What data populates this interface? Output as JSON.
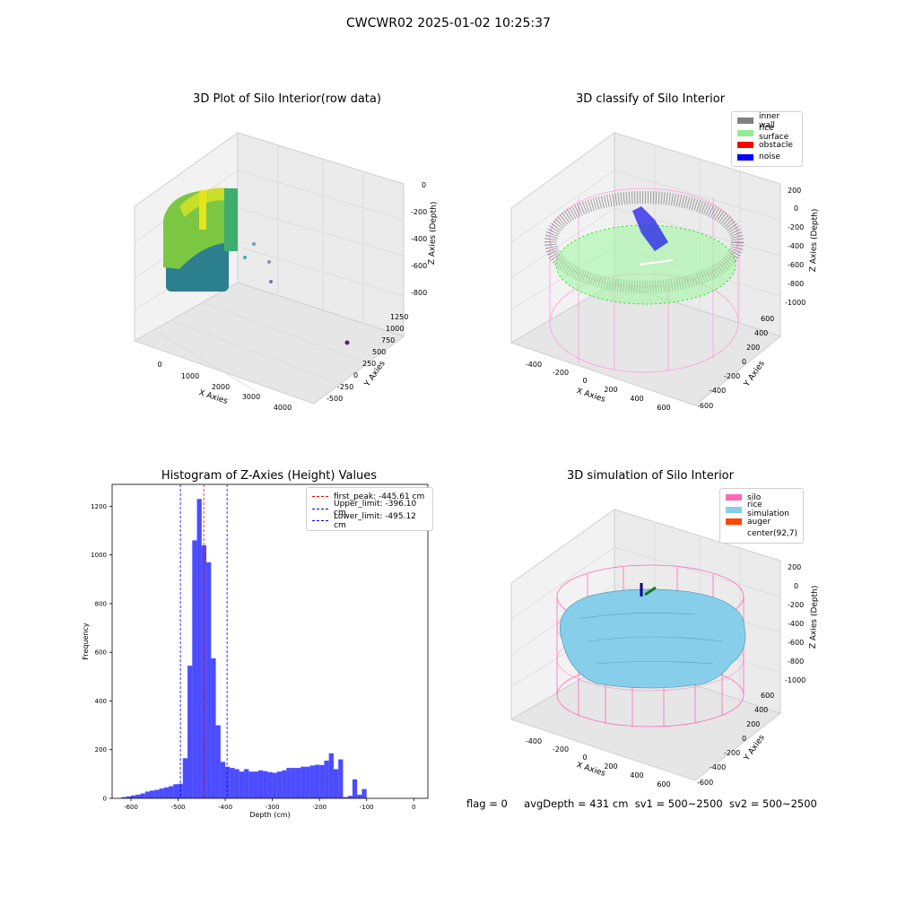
{
  "figure": {
    "title": "CWCWR02 2025-01-02 10:25:37"
  },
  "panels": {
    "raw": {
      "title": "3D Plot of Silo Interior(row data)",
      "xlabel": "X Axies",
      "ylabel": "Y Axies",
      "zlabel": "Z Axies (Depth)",
      "xticks": [
        "0",
        "1000",
        "2000",
        "3000",
        "4000"
      ],
      "yticks": [
        "-500",
        "-250",
        "0",
        "250",
        "500",
        "750",
        "1000",
        "1250"
      ],
      "zticks": [
        "0",
        "-200",
        "-400",
        "-600",
        "-800"
      ]
    },
    "classify": {
      "title": "3D classify of Silo Interior",
      "xlabel": "X Axies",
      "ylabel": "Y Axies",
      "zlabel": "Z Axies (Depth)",
      "xticks": [
        "-400",
        "-200",
        "0",
        "200",
        "400",
        "600"
      ],
      "yticks": [
        "-600",
        "-400",
        "-200",
        "0",
        "200",
        "400",
        "600"
      ],
      "zticks": [
        "200",
        "0",
        "-200",
        "-400",
        "-600",
        "-800",
        "-1000"
      ],
      "legend": [
        {
          "label": "inner wall",
          "color": "#808080"
        },
        {
          "label": "rice surface",
          "color": "#90ee90"
        },
        {
          "label": "obstacle",
          "color": "#ff0000"
        },
        {
          "label": "noise",
          "color": "#0000ff"
        }
      ]
    },
    "simulation": {
      "title": "3D simulation of Silo Interior",
      "xlabel": "X Axies",
      "ylabel": "Y Axies",
      "zlabel": "Z Axies (Depth)",
      "xticks": [
        "-400",
        "-200",
        "0",
        "200",
        "400",
        "600"
      ],
      "yticks": [
        "-600",
        "-400",
        "-200",
        "0",
        "200",
        "400",
        "600"
      ],
      "zticks": [
        "200",
        "0",
        "-200",
        "-400",
        "-600",
        "-800",
        "-1000"
      ],
      "legend": [
        {
          "label": "silo",
          "color": "#ff69b4"
        },
        {
          "label": "rice simulation",
          "color": "#87ceeb"
        },
        {
          "label": "auger",
          "color": "#ff4500"
        },
        {
          "label": "center(92,7)",
          "color": "#ffffff"
        }
      ]
    }
  },
  "status": {
    "flag": "flag = 0",
    "avg_depth": "avgDepth = 431 cm",
    "sv1": "sv1 = 500~2500",
    "sv2": "sv2 = 500~2500"
  },
  "chart_data": {
    "type": "bar",
    "title": "Histogram of Z-Axies (Height) Values",
    "xlabel": "Depth (cm)",
    "ylabel": "Frequency",
    "xlim": [
      -640,
      30
    ],
    "ylim": [
      0,
      1290
    ],
    "xticks": [
      -600,
      -500,
      -400,
      -300,
      -200,
      -100,
      0
    ],
    "yticks": [
      0,
      200,
      400,
      600,
      800,
      1000,
      1200
    ],
    "bin_width": 10,
    "bin_starts": [
      -620,
      -610,
      -600,
      -590,
      -580,
      -570,
      -560,
      -550,
      -540,
      -530,
      -520,
      -510,
      -500,
      -490,
      -480,
      -470,
      -460,
      -450,
      -440,
      -430,
      -420,
      -410,
      -400,
      -390,
      -380,
      -370,
      -360,
      -350,
      -340,
      -330,
      -320,
      -310,
      -300,
      -290,
      -280,
      -270,
      -260,
      -250,
      -240,
      -230,
      -220,
      -210,
      -200,
      -190,
      -180,
      -170,
      -160,
      -150,
      -140,
      -130,
      -120,
      -110,
      -100,
      -90,
      -80,
      -70,
      -60,
      -50,
      -40,
      -30,
      -20,
      -10
    ],
    "counts": [
      5,
      8,
      12,
      15,
      20,
      28,
      32,
      35,
      40,
      45,
      50,
      58,
      60,
      165,
      545,
      1060,
      1230,
      1040,
      970,
      575,
      300,
      150,
      130,
      125,
      120,
      110,
      120,
      110,
      110,
      115,
      112,
      108,
      105,
      110,
      115,
      125,
      125,
      125,
      130,
      130,
      135,
      138,
      137,
      155,
      185,
      120,
      160,
      5,
      10,
      78,
      15,
      38,
      0,
      0,
      0,
      0,
      0,
      0,
      0,
      0,
      0,
      0
    ],
    "lines": [
      {
        "label": "first_peak: -445.61 cm",
        "x": -445.61,
        "color": "#ff0000"
      },
      {
        "label": "Upper_limit: -396.10 cm",
        "x": -396.1,
        "color": "#0000ff"
      },
      {
        "label": "Lower_limit: -495.12 cm",
        "x": -495.12,
        "color": "#0000ff"
      }
    ]
  }
}
